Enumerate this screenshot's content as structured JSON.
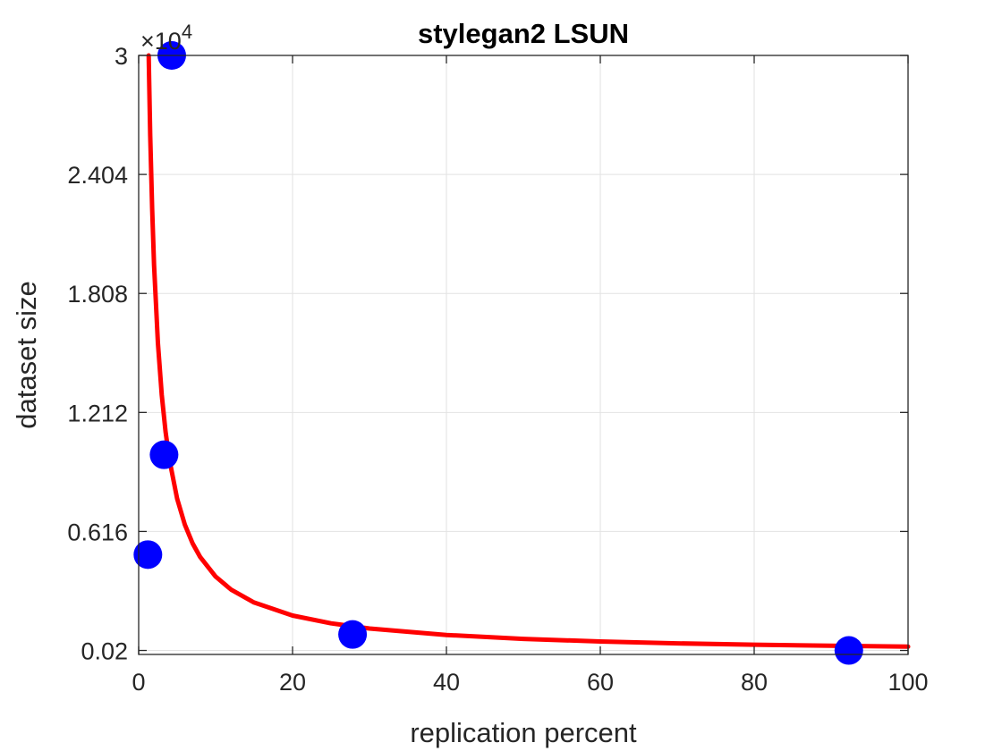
{
  "chart_data": {
    "type": "scatter",
    "title": "stylegan2 LSUN",
    "xlabel": "replication percent",
    "ylabel": "dataset size",
    "xlim": [
      0,
      100
    ],
    "ylim": [
      0,
      30000
    ],
    "x_ticks": [
      0,
      20,
      40,
      60,
      80,
      100
    ],
    "x_tick_labels": [
      "0",
      "20",
      "40",
      "60",
      "80",
      "100"
    ],
    "y_ticks": [
      200,
      6160,
      12120,
      18080,
      24040,
      30000
    ],
    "y_tick_labels": [
      "0.02",
      "0.616",
      "1.212",
      "1.808",
      "2.404",
      "3"
    ],
    "y_exponent_label": "×10",
    "y_exponent_power": "4",
    "grid": true,
    "series": [
      {
        "kind": "points",
        "color": "#0000ff",
        "x": [
          1.2,
          3.3,
          4.3,
          27.8,
          92.3
        ],
        "y": [
          5000,
          10000,
          30000,
          1000,
          200
        ]
      },
      {
        "kind": "fit-curve",
        "color": "#ff0000",
        "x": [
          1.3,
          1.5,
          1.75,
          2,
          2.5,
          3,
          3.5,
          4,
          5,
          6,
          7,
          8,
          10,
          12,
          15,
          20,
          25,
          30,
          40,
          50,
          60,
          70,
          80,
          90,
          100
        ],
        "y": [
          30000,
          26000,
          22290,
          19500,
          15600,
          13000,
          11140,
          9750,
          7800,
          6500,
          5570,
          4875,
          3900,
          3250,
          2600,
          1950,
          1560,
          1300,
          975,
          780,
          650,
          557,
          488,
          433,
          390
        ]
      }
    ]
  }
}
